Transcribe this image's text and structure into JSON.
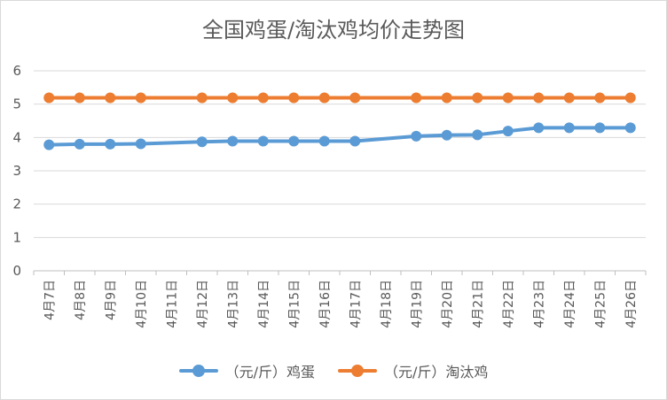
{
  "colors": {
    "egg": "#5b9bd5",
    "hen": "#ed7d31",
    "grid": "#d9d9d9",
    "axis": "#bfbfbf"
  },
  "chart_data": {
    "type": "line",
    "title": "全国鸡蛋/淘汰鸡均价走势图",
    "categories": [
      "4月7日",
      "4月8日",
      "4月9日",
      "4月10日",
      "4月11日",
      "4月12日",
      "4月13日",
      "4月14日",
      "4月15日",
      "4月16日",
      "4月17日",
      "4月18日",
      "4月19日",
      "4月20日",
      "4月21日",
      "4月22日",
      "4月23日",
      "4月24日",
      "4月25日",
      "4月26日"
    ],
    "ylim": [
      0,
      6
    ],
    "yticks": [
      "0",
      "1",
      "2",
      "3",
      "4",
      "5",
      "6"
    ],
    "grid": true,
    "legend": "bottom",
    "series": [
      {
        "name": "（元/斤）鸡蛋",
        "color": "#5b9bd5",
        "values": [
          3.78,
          3.8,
          3.8,
          3.81,
          null,
          3.87,
          3.89,
          3.89,
          3.89,
          3.89,
          3.89,
          null,
          4.04,
          4.07,
          4.08,
          4.19,
          4.29,
          4.29,
          4.29,
          4.29
        ]
      },
      {
        "name": "（元/斤）淘汰鸡",
        "color": "#ed7d31",
        "values": [
          5.19,
          5.19,
          5.19,
          5.19,
          null,
          5.19,
          5.19,
          5.19,
          5.19,
          5.19,
          5.19,
          null,
          5.19,
          5.19,
          5.19,
          5.19,
          5.19,
          5.19,
          5.19,
          5.19
        ]
      }
    ]
  }
}
